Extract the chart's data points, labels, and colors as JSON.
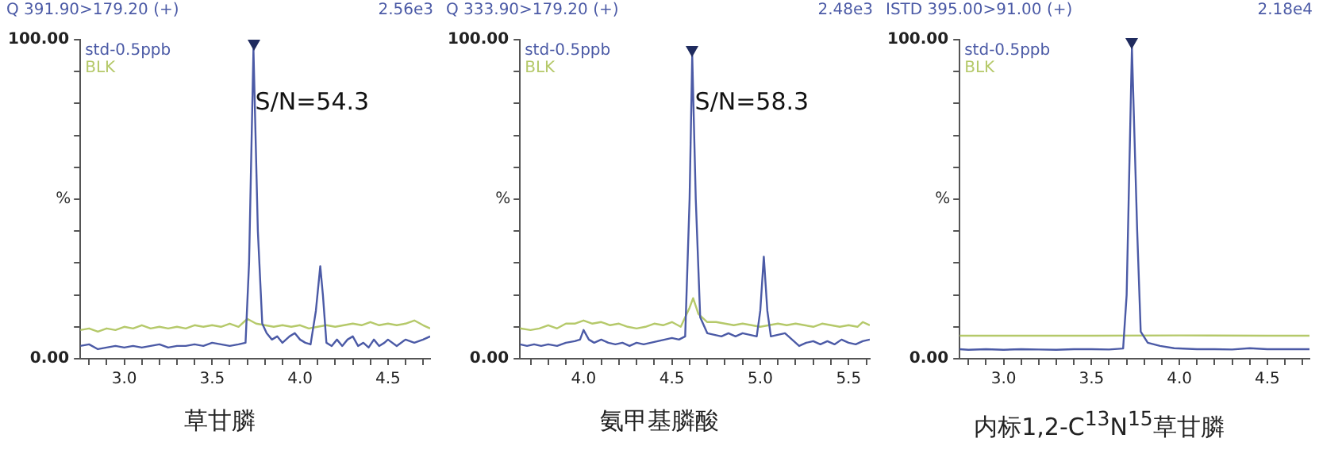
{
  "chart_data": [
    {
      "type": "line",
      "title": "Q 391.90>179.20 (+)",
      "subtitle": "2.56e3",
      "xlabel": "草甘膦",
      "ylabel": "%",
      "annotations": [
        "S/N=54.3"
      ],
      "legend": "top left",
      "marker": "none",
      "line_style": "solid",
      "grid": false,
      "xlim": [
        2.75,
        4.74
      ],
      "xticks": [
        {
          "value": 2.8,
          "label": null
        },
        {
          "value": 2.9,
          "label": null
        },
        {
          "value": 3.0,
          "label": "3.0"
        },
        {
          "value": 3.1,
          "label": null
        },
        {
          "value": 3.2,
          "label": null
        },
        {
          "value": 3.3,
          "label": null
        },
        {
          "value": 3.4,
          "label": null
        },
        {
          "value": 3.5,
          "label": "3.5"
        },
        {
          "value": 3.6,
          "label": null
        },
        {
          "value": 3.7,
          "label": null
        },
        {
          "value": 3.8,
          "label": null
        },
        {
          "value": 3.9,
          "label": null
        },
        {
          "value": 4.0,
          "label": "4.0"
        },
        {
          "value": 4.1,
          "label": null
        },
        {
          "value": 4.2,
          "label": null
        },
        {
          "value": 4.3,
          "label": null
        },
        {
          "value": 4.4,
          "label": null
        },
        {
          "value": 4.5,
          "label": "4.5"
        },
        {
          "value": 4.6,
          "label": null
        },
        {
          "value": 4.7,
          "label": null
        }
      ],
      "ylim": [
        0,
        100
      ],
      "yticks": [
        {
          "value": 0,
          "label": "0.00"
        },
        {
          "value": 10,
          "label": null
        },
        {
          "value": 20,
          "label": null
        },
        {
          "value": 30,
          "label": null
        },
        {
          "value": 40,
          "label": null
        },
        {
          "value": 50,
          "label": null
        },
        {
          "value": 60,
          "label": null
        },
        {
          "value": 70,
          "label": null
        },
        {
          "value": 80,
          "label": null
        },
        {
          "value": 90,
          "label": null
        },
        {
          "value": 100,
          "label": "100.00"
        }
      ],
      "series": [
        {
          "name": "std-0.5ppb",
          "color": "#4b5aa6",
          "x": [
            2.75,
            2.8,
            2.85,
            2.9,
            2.95,
            3.0,
            3.05,
            3.1,
            3.15,
            3.2,
            3.25,
            3.3,
            3.35,
            3.4,
            3.45,
            3.5,
            3.55,
            3.6,
            3.65,
            3.69,
            3.71,
            3.735,
            3.76,
            3.785,
            3.81,
            3.84,
            3.87,
            3.9,
            3.94,
            3.97,
            4.0,
            4.03,
            4.06,
            4.09,
            4.115,
            4.13,
            4.15,
            4.18,
            4.21,
            4.24,
            4.27,
            4.3,
            4.33,
            4.36,
            4.39,
            4.42,
            4.45,
            4.48,
            4.5,
            4.55,
            4.6,
            4.65,
            4.7,
            4.74
          ],
          "values": [
            4,
            4.5,
            3,
            3.5,
            4,
            3.5,
            4,
            3.5,
            4,
            4.5,
            3.5,
            4,
            4,
            4.5,
            4,
            5,
            4.5,
            4,
            4.5,
            5,
            30,
            97,
            40,
            11,
            8,
            6,
            7,
            5,
            7,
            8,
            6,
            5,
            4.5,
            15,
            29,
            20,
            5,
            4,
            6,
            4,
            6,
            7,
            4,
            5,
            3.5,
            6,
            4,
            5,
            6,
            4,
            6,
            5,
            6,
            7
          ]
        },
        {
          "name": "BLK",
          "color": "#b5c96a",
          "x": [
            2.75,
            2.8,
            2.85,
            2.9,
            2.95,
            3.0,
            3.05,
            3.1,
            3.15,
            3.2,
            3.25,
            3.3,
            3.35,
            3.4,
            3.45,
            3.5,
            3.55,
            3.6,
            3.65,
            3.7,
            3.75,
            3.8,
            3.85,
            3.9,
            3.95,
            4.0,
            4.05,
            4.1,
            4.15,
            4.2,
            4.25,
            4.3,
            4.35,
            4.4,
            4.45,
            4.5,
            4.55,
            4.6,
            4.65,
            4.7,
            4.74
          ],
          "values": [
            9,
            9.5,
            8.5,
            9.5,
            9,
            10,
            9.5,
            10.5,
            9.5,
            10,
            9.5,
            10,
            9.5,
            10.5,
            10,
            10.5,
            10,
            11,
            10,
            12.5,
            11,
            10.5,
            10,
            10.5,
            10,
            10.5,
            9.5,
            10,
            10.5,
            10,
            10.5,
            11,
            10.5,
            11.5,
            10.5,
            11,
            10.5,
            11,
            12,
            10.5,
            9.5
          ]
        }
      ]
    },
    {
      "type": "line",
      "title": "Q 333.90>179.20 (+)",
      "subtitle": "2.48e3",
      "xlabel": "氨甲基膦酸",
      "ylabel": "%",
      "annotations": [
        "S/N=58.3"
      ],
      "legend": "top left",
      "marker": "none",
      "line_style": "solid",
      "grid": false,
      "xlim": [
        3.64,
        5.62
      ],
      "xticks": [
        {
          "value": 3.7,
          "label": null
        },
        {
          "value": 3.8,
          "label": null
        },
        {
          "value": 3.9,
          "label": null
        },
        {
          "value": 4.0,
          "label": "4.0"
        },
        {
          "value": 4.1,
          "label": null
        },
        {
          "value": 4.2,
          "label": null
        },
        {
          "value": 4.3,
          "label": null
        },
        {
          "value": 4.4,
          "label": null
        },
        {
          "value": 4.5,
          "label": "4.5"
        },
        {
          "value": 4.6,
          "label": null
        },
        {
          "value": 4.7,
          "label": null
        },
        {
          "value": 4.8,
          "label": null
        },
        {
          "value": 4.9,
          "label": null
        },
        {
          "value": 5.0,
          "label": "5.0"
        },
        {
          "value": 5.1,
          "label": null
        },
        {
          "value": 5.2,
          "label": null
        },
        {
          "value": 5.3,
          "label": null
        },
        {
          "value": 5.4,
          "label": null
        },
        {
          "value": 5.5,
          "label": "5.5"
        },
        {
          "value": 5.6,
          "label": null
        }
      ],
      "ylim": [
        0,
        100
      ],
      "yticks": [
        {
          "value": 0,
          "label": "0.00"
        },
        {
          "value": 10,
          "label": null
        },
        {
          "value": 20,
          "label": null
        },
        {
          "value": 30,
          "label": null
        },
        {
          "value": 40,
          "label": null
        },
        {
          "value": 50,
          "label": null
        },
        {
          "value": 60,
          "label": null
        },
        {
          "value": 70,
          "label": null
        },
        {
          "value": 80,
          "label": null
        },
        {
          "value": 90,
          "label": null
        },
        {
          "value": 100,
          "label": "100.00"
        }
      ],
      "series": [
        {
          "name": "std-0.5ppb",
          "color": "#4b5aa6",
          "x": [
            3.64,
            3.68,
            3.72,
            3.76,
            3.8,
            3.85,
            3.9,
            3.95,
            3.98,
            4.0,
            4.03,
            4.06,
            4.1,
            4.14,
            4.18,
            4.22,
            4.26,
            4.3,
            4.34,
            4.38,
            4.42,
            4.46,
            4.5,
            4.54,
            4.575,
            4.6,
            4.615,
            4.635,
            4.66,
            4.7,
            4.74,
            4.78,
            4.82,
            4.86,
            4.9,
            4.94,
            4.98,
            5.0,
            5.02,
            5.04,
            5.06,
            5.1,
            5.14,
            5.18,
            5.22,
            5.26,
            5.3,
            5.34,
            5.38,
            5.42,
            5.46,
            5.5,
            5.54,
            5.58,
            5.62
          ],
          "values": [
            4.5,
            4,
            4.5,
            4,
            4.5,
            4,
            5,
            5.5,
            6,
            9,
            6,
            5,
            6,
            5,
            4.5,
            5,
            4,
            5,
            4.5,
            5,
            5.5,
            6,
            6.5,
            6,
            7,
            50,
            95,
            50,
            13,
            8,
            7.5,
            7,
            8,
            7,
            8,
            7.5,
            7,
            15,
            32,
            15,
            7,
            7.5,
            8,
            6,
            4,
            5,
            5.5,
            4.5,
            5.5,
            4.5,
            6,
            5,
            4.5,
            5.5,
            6
          ]
        },
        {
          "name": "BLK",
          "color": "#b5c96a",
          "x": [
            3.64,
            3.7,
            3.75,
            3.8,
            3.85,
            3.9,
            3.95,
            4.0,
            4.05,
            4.1,
            4.15,
            4.2,
            4.25,
            4.3,
            4.35,
            4.4,
            4.45,
            4.5,
            4.55,
            4.6,
            4.62,
            4.65,
            4.7,
            4.75,
            4.8,
            4.85,
            4.9,
            4.95,
            5.0,
            5.05,
            5.1,
            5.15,
            5.2,
            5.25,
            5.3,
            5.35,
            5.4,
            5.45,
            5.5,
            5.55,
            5.58,
            5.62
          ],
          "values": [
            9.5,
            9,
            9.5,
            10.5,
            9.5,
            11,
            11,
            12,
            11,
            11.5,
            10.5,
            11,
            10,
            9.5,
            10,
            11,
            10.5,
            11.5,
            10,
            16,
            19,
            14,
            11.5,
            11.5,
            11,
            10.5,
            11,
            10.5,
            10,
            10.5,
            11,
            10.5,
            11,
            10.5,
            10,
            11,
            10.5,
            10,
            10.5,
            10,
            11.5,
            10.5
          ]
        }
      ]
    },
    {
      "type": "line",
      "title": "ISTD 395.00>91.00 (+)",
      "subtitle": "2.18e4",
      "xlabel": "内标1,2-C$^{13}$N$^{15}$草甘膦",
      "ylabel": "%",
      "legend": "top left",
      "marker": "none",
      "line_style": "solid",
      "grid": false,
      "xlim": [
        2.75,
        4.74
      ],
      "xticks": [
        {
          "value": 2.8,
          "label": null
        },
        {
          "value": 2.9,
          "label": null
        },
        {
          "value": 3.0,
          "label": "3.0"
        },
        {
          "value": 3.1,
          "label": null
        },
        {
          "value": 3.2,
          "label": null
        },
        {
          "value": 3.3,
          "label": null
        },
        {
          "value": 3.4,
          "label": null
        },
        {
          "value": 3.5,
          "label": "3.5"
        },
        {
          "value": 3.6,
          "label": null
        },
        {
          "value": 3.7,
          "label": null
        },
        {
          "value": 3.8,
          "label": null
        },
        {
          "value": 3.9,
          "label": null
        },
        {
          "value": 4.0,
          "label": "4.0"
        },
        {
          "value": 4.1,
          "label": null
        },
        {
          "value": 4.2,
          "label": null
        },
        {
          "value": 4.3,
          "label": null
        },
        {
          "value": 4.4,
          "label": null
        },
        {
          "value": 4.5,
          "label": "4.5"
        },
        {
          "value": 4.6,
          "label": null
        },
        {
          "value": 4.7,
          "label": null
        }
      ],
      "ylim": [
        0,
        100
      ],
      "yticks": [
        {
          "value": 0,
          "label": "0.00"
        },
        {
          "value": 10,
          "label": null
        },
        {
          "value": 20,
          "label": null
        },
        {
          "value": 30,
          "label": null
        },
        {
          "value": 40,
          "label": null
        },
        {
          "value": 50,
          "label": null
        },
        {
          "value": 60,
          "label": null
        },
        {
          "value": 70,
          "label": null
        },
        {
          "value": 80,
          "label": null
        },
        {
          "value": 90,
          "label": null
        },
        {
          "value": 100,
          "label": "100.00"
        }
      ],
      "series": [
        {
          "name": "std-0.5ppb",
          "color": "#4b5aa6",
          "x": [
            2.75,
            2.8,
            2.9,
            3.0,
            3.1,
            3.2,
            3.3,
            3.4,
            3.5,
            3.6,
            3.68,
            3.7,
            3.73,
            3.76,
            3.78,
            3.82,
            3.89,
            3.97,
            4.1,
            4.2,
            4.3,
            4.4,
            4.5,
            4.6,
            4.74
          ],
          "values": [
            3,
            2.8,
            3,
            2.8,
            3,
            2.9,
            2.8,
            3,
            3,
            2.9,
            3.2,
            20,
            97.5,
            40,
            8.5,
            5,
            4,
            3.3,
            3,
            3,
            2.9,
            3.3,
            3,
            3,
            3
          ]
        },
        {
          "name": "BLK",
          "color": "#b5c96a",
          "x": [
            2.75,
            3.0,
            3.5,
            4.0,
            4.5,
            4.74
          ],
          "values": [
            7.2,
            7.2,
            7.2,
            7.3,
            7.2,
            7.2
          ]
        }
      ]
    }
  ]
}
